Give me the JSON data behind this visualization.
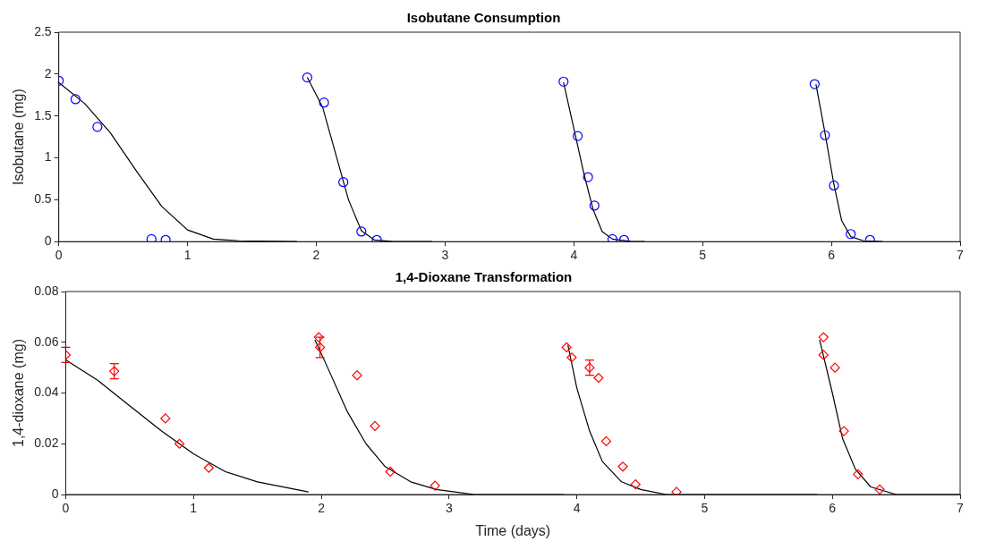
{
  "chart_data": [
    {
      "type": "scatter",
      "title": "Isobutane Consumption",
      "ylabel": "Isobutane (mg)",
      "xlim": [
        0,
        7
      ],
      "xticks": [
        0,
        1,
        2,
        3,
        4,
        5,
        6,
        7
      ],
      "ylim": [
        0,
        2.5
      ],
      "yticks": [
        0,
        0.5,
        1,
        1.5,
        2,
        2.5
      ],
      "grid": false,
      "legend": false,
      "marker": "circle",
      "series": [
        {
          "color": "#0000ff",
          "x": [
            0,
            0.13,
            0.3,
            0.72,
            0.83,
            1.93,
            2.06,
            2.21,
            2.35,
            2.47,
            3.92,
            4.03,
            4.11,
            4.16,
            4.3,
            4.39,
            5.87,
            5.95,
            6.02,
            6.15,
            6.3
          ],
          "values": [
            1.92,
            1.7,
            1.37,
            0.03,
            0.02,
            1.96,
            1.66,
            0.71,
            0.12,
            0.02,
            1.91,
            1.26,
            0.77,
            0.43,
            0.03,
            0.02,
            1.88,
            1.27,
            0.67,
            0.09,
            0.02
          ]
        },
        {
          "type": "line",
          "color": "#000000",
          "line_style": "solid",
          "marker": "none",
          "x": [
            0,
            0.2,
            0.4,
            0.6,
            0.8,
            1.0,
            1.2,
            1.4,
            1.85
          ],
          "values": [
            1.9,
            1.65,
            1.3,
            0.85,
            0.42,
            0.14,
            0.03,
            0.01,
            0
          ]
        },
        {
          "type": "line",
          "color": "#000000",
          "line_style": "solid",
          "marker": "none",
          "x": [
            1.93,
            2.05,
            2.15,
            2.25,
            2.35,
            2.45,
            2.6,
            2.9
          ],
          "values": [
            1.96,
            1.6,
            1.05,
            0.5,
            0.13,
            0.02,
            0,
            0
          ]
        },
        {
          "type": "line",
          "color": "#000000",
          "line_style": "solid",
          "marker": "none",
          "x": [
            3.92,
            4.0,
            4.08,
            4.15,
            4.22,
            4.3,
            4.45,
            4.55
          ],
          "values": [
            1.9,
            1.35,
            0.8,
            0.38,
            0.12,
            0.03,
            0,
            0
          ]
        },
        {
          "type": "line",
          "color": "#000000",
          "line_style": "solid",
          "marker": "none",
          "x": [
            5.88,
            5.95,
            6.02,
            6.08,
            6.15,
            6.25,
            6.4
          ],
          "values": [
            1.88,
            1.3,
            0.68,
            0.25,
            0.06,
            0.01,
            0
          ]
        }
      ]
    },
    {
      "type": "scatter",
      "title": "1,4-Dioxane Transformation",
      "xlabel": "Time (days)",
      "ylabel": "1,4-dioxane (mg)",
      "xlim": [
        0,
        7
      ],
      "xticks": [
        0,
        1,
        2,
        3,
        4,
        5,
        6,
        7
      ],
      "ylim": [
        0,
        0.08
      ],
      "yticks": [
        0,
        0.02,
        0.04,
        0.06,
        0.08
      ],
      "grid": false,
      "legend": false,
      "marker": "diamond",
      "series": [
        {
          "color": "#ff0000",
          "x": [
            0,
            0.38,
            0.78,
            0.89,
            1.12,
            1.98,
            1.99,
            2.28,
            2.42,
            2.54,
            2.89,
            3.92,
            3.96,
            4.1,
            4.17,
            4.23,
            4.36,
            4.46,
            4.78,
            5.93,
            5.93,
            6.02,
            6.09,
            6.2,
            6.37
          ],
          "values": [
            0.055,
            0.0486,
            0.03,
            0.02,
            0.0105,
            0.062,
            0.058,
            0.047,
            0.027,
            0.009,
            0.0035,
            0.058,
            0.054,
            0.05,
            0.046,
            0.021,
            0.011,
            0.004,
            0.001,
            0.062,
            0.055,
            0.05,
            0.025,
            0.008,
            0.002
          ],
          "errors": [
            0.003,
            0.003,
            null,
            null,
            null,
            null,
            0.004,
            null,
            null,
            null,
            null,
            null,
            null,
            0.003,
            null,
            null,
            null,
            null,
            null,
            null,
            null,
            null,
            null,
            null,
            null
          ]
        },
        {
          "type": "line",
          "color": "#000000",
          "line_style": "solid",
          "marker": "none",
          "x": [
            0,
            0.25,
            0.5,
            0.75,
            1.0,
            1.25,
            1.5,
            1.9
          ],
          "values": [
            0.053,
            0.045,
            0.035,
            0.025,
            0.016,
            0.009,
            0.005,
            0.001
          ]
        },
        {
          "type": "line",
          "color": "#000000",
          "line_style": "solid",
          "marker": "none",
          "x": [
            1.95,
            2.05,
            2.2,
            2.35,
            2.5,
            2.7,
            2.9,
            3.2,
            3.9
          ],
          "values": [
            0.061,
            0.05,
            0.033,
            0.02,
            0.011,
            0.005,
            0.002,
            0,
            0
          ]
        },
        {
          "type": "line",
          "color": "#000000",
          "line_style": "solid",
          "marker": "none",
          "x": [
            3.93,
            4.0,
            4.1,
            4.2,
            4.35,
            4.5,
            4.7,
            5.88
          ],
          "values": [
            0.059,
            0.042,
            0.025,
            0.013,
            0.005,
            0.002,
            0,
            0
          ]
        },
        {
          "type": "line",
          "color": "#000000",
          "line_style": "solid",
          "marker": "none",
          "x": [
            5.9,
            6.0,
            6.08,
            6.18,
            6.3,
            6.5,
            7
          ],
          "values": [
            0.061,
            0.04,
            0.022,
            0.01,
            0.003,
            0,
            0
          ]
        }
      ]
    }
  ]
}
